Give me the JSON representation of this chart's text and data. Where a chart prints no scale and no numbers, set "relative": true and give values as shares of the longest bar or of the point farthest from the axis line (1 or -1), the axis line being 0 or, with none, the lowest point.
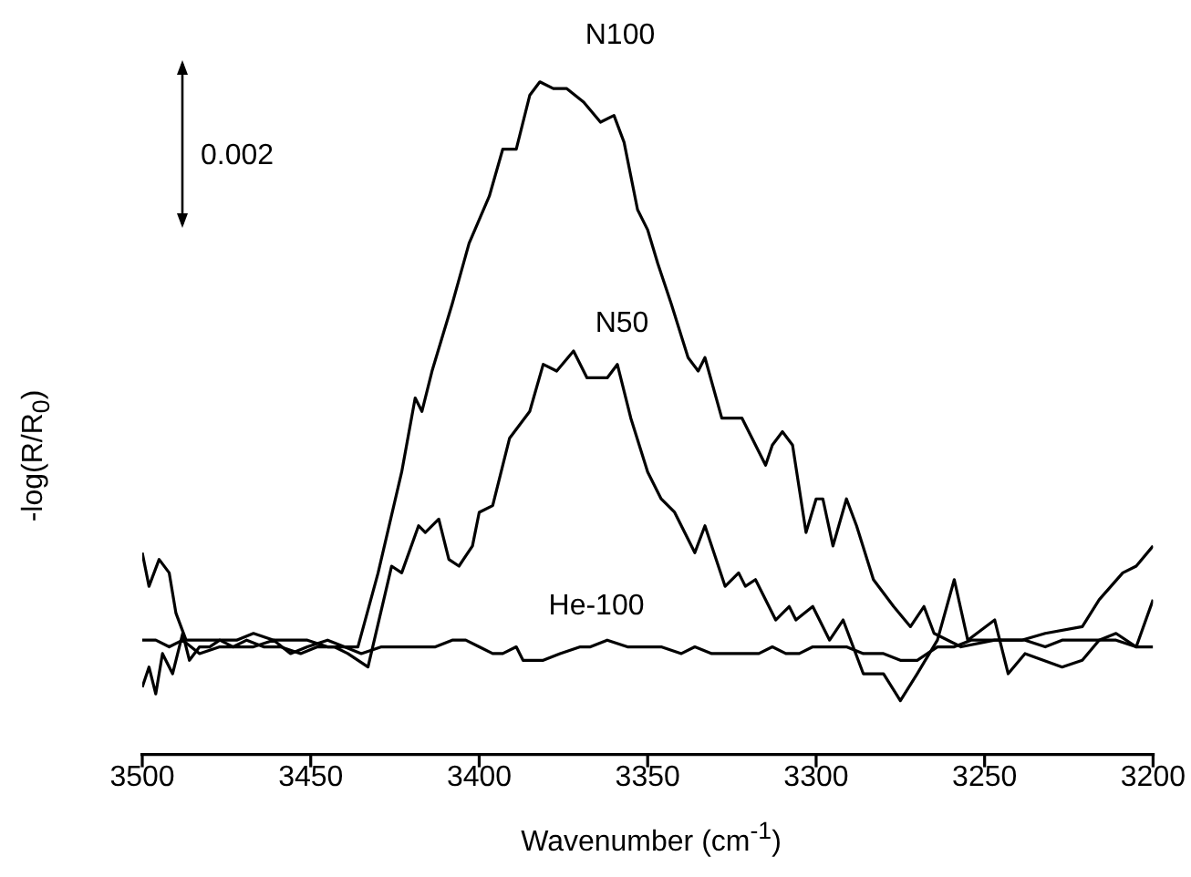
{
  "chart_data": {
    "type": "line",
    "xlabel": "Wavenumber (cm$^{-1}$)",
    "ylabel": "-log(R/R$_{0}$)",
    "relative": true,
    "tick_labels": "x",
    "legend": false,
    "marker": "none",
    "xlim": [
      3500,
      3200
    ],
    "xticks": [
      3500,
      3450,
      3400,
      3350,
      3300,
      3250,
      3200
    ],
    "annotations": [
      "0.002",
      "N100",
      "N50",
      "He-100"
    ],
    "series": [
      {
        "color": "#000000",
        "x": [
          3500,
          3498,
          3495,
          3492,
          3490,
          3487,
          3483,
          3477,
          3472,
          3467,
          3461,
          3456,
          3451,
          3445,
          3440,
          3436,
          3430,
          3423,
          3419,
          3417,
          3414,
          3408,
          3403,
          3397,
          3393,
          3389,
          3385,
          3382,
          3378,
          3374,
          3369,
          3364,
          3360,
          3357,
          3353,
          3350,
          3347,
          3343,
          3338,
          3335,
          3333,
          3328,
          3322,
          3315,
          3313,
          3310,
          3307,
          3303,
          3300,
          3298,
          3295,
          3291,
          3288,
          3283,
          3277,
          3272,
          3268,
          3265,
          3257,
          3247,
          3239,
          3232,
          3221,
          3216,
          3209,
          3205,
          3200
        ],
        "values": [
          0.3,
          0.25,
          0.29,
          0.27,
          0.21,
          0.17,
          0.17,
          0.17,
          0.17,
          0.18,
          0.17,
          0.17,
          0.17,
          0.16,
          0.16,
          0.16,
          0.27,
          0.42,
          0.53,
          0.51,
          0.57,
          0.67,
          0.76,
          0.83,
          0.9,
          0.9,
          0.98,
          1.0,
          0.99,
          0.99,
          0.97,
          0.94,
          0.95,
          0.91,
          0.81,
          0.78,
          0.73,
          0.67,
          0.59,
          0.57,
          0.59,
          0.5,
          0.5,
          0.43,
          0.46,
          0.48,
          0.46,
          0.33,
          0.38,
          0.38,
          0.31,
          0.38,
          0.34,
          0.26,
          0.22,
          0.19,
          0.22,
          0.18,
          0.16,
          0.17,
          0.17,
          0.18,
          0.19,
          0.23,
          0.27,
          0.28,
          0.31
        ]
      },
      {
        "color": "#000000",
        "x": [
          3500,
          3498,
          3496,
          3494,
          3491,
          3488,
          3486,
          3483,
          3480,
          3477,
          3473,
          3469,
          3464,
          3459,
          3453,
          3448,
          3443,
          3439,
          3433,
          3426,
          3423,
          3418,
          3416,
          3412,
          3409,
          3406,
          3402,
          3400,
          3396,
          3391,
          3385,
          3381,
          3377,
          3372,
          3368,
          3362,
          3359,
          3355,
          3350,
          3346,
          3342,
          3336,
          3333,
          3327,
          3323,
          3321,
          3318,
          3312,
          3308,
          3306,
          3301,
          3296,
          3292,
          3286,
          3280,
          3275,
          3270,
          3264,
          3259,
          3255,
          3247,
          3243,
          3238,
          3227,
          3221,
          3216,
          3211,
          3205,
          3200
        ],
        "values": [
          0.1,
          0.13,
          0.09,
          0.15,
          0.12,
          0.18,
          0.14,
          0.16,
          0.16,
          0.17,
          0.16,
          0.17,
          0.16,
          0.16,
          0.15,
          0.16,
          0.16,
          0.15,
          0.13,
          0.28,
          0.27,
          0.34,
          0.33,
          0.35,
          0.29,
          0.28,
          0.31,
          0.36,
          0.37,
          0.47,
          0.51,
          0.58,
          0.57,
          0.6,
          0.56,
          0.56,
          0.58,
          0.5,
          0.42,
          0.38,
          0.36,
          0.3,
          0.34,
          0.25,
          0.27,
          0.25,
          0.26,
          0.2,
          0.22,
          0.2,
          0.22,
          0.17,
          0.2,
          0.12,
          0.12,
          0.08,
          0.12,
          0.17,
          0.26,
          0.17,
          0.2,
          0.12,
          0.15,
          0.13,
          0.14,
          0.17,
          0.18,
          0.16,
          0.23
        ]
      },
      {
        "color": "#000000",
        "x": [
          3500,
          3496,
          3492,
          3488,
          3483,
          3477,
          3472,
          3467,
          3461,
          3456,
          3451,
          3445,
          3440,
          3435,
          3429,
          3424,
          3418,
          3413,
          3408,
          3404,
          3400,
          3396,
          3393,
          3389,
          3387,
          3381,
          3376,
          3370,
          3367,
          3362,
          3356,
          3351,
          3346,
          3340,
          3336,
          3331,
          3327,
          3322,
          3317,
          3313,
          3309,
          3305,
          3301,
          3296,
          3291,
          3286,
          3280,
          3275,
          3270,
          3264,
          3259,
          3254,
          3248,
          3243,
          3238,
          3232,
          3227,
          3221,
          3216,
          3211,
          3205,
          3200
        ],
        "values": [
          0.17,
          0.17,
          0.16,
          0.17,
          0.15,
          0.16,
          0.16,
          0.16,
          0.17,
          0.15,
          0.16,
          0.17,
          0.16,
          0.15,
          0.16,
          0.16,
          0.16,
          0.16,
          0.17,
          0.17,
          0.16,
          0.15,
          0.15,
          0.16,
          0.14,
          0.14,
          0.15,
          0.16,
          0.16,
          0.17,
          0.16,
          0.16,
          0.16,
          0.15,
          0.16,
          0.15,
          0.15,
          0.15,
          0.15,
          0.16,
          0.15,
          0.15,
          0.16,
          0.16,
          0.16,
          0.15,
          0.15,
          0.14,
          0.14,
          0.16,
          0.16,
          0.17,
          0.17,
          0.17,
          0.17,
          0.16,
          0.17,
          0.17,
          0.17,
          0.17,
          0.16,
          0.16
        ]
      }
    ]
  }
}
